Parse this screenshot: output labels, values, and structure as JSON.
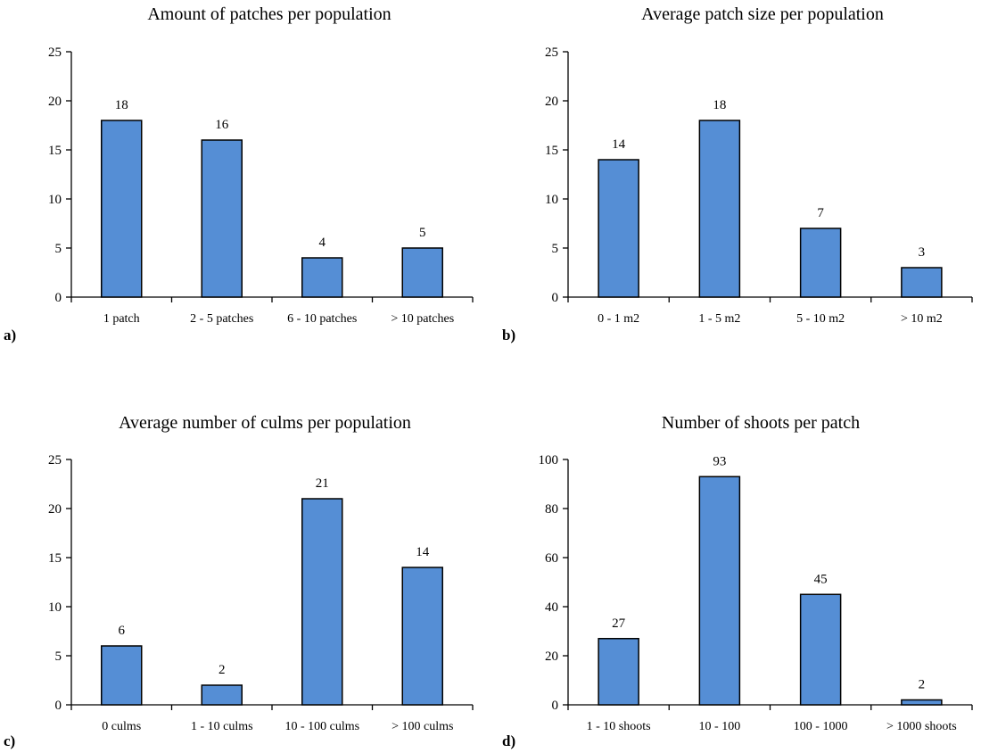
{
  "colors": {
    "bar_fill": "#558ED5",
    "bar_stroke": "#000000",
    "axis": "#000000"
  },
  "chart_data": [
    {
      "type": "bar",
      "panel_label": "a)",
      "title": "Amount of patches per population",
      "categories": [
        "1 patch",
        "2 - 5 patches",
        "6 - 10 patches",
        "> 10 patches"
      ],
      "values": [
        18,
        16,
        4,
        5
      ],
      "data_labels": [
        "18",
        "16",
        "4",
        "5"
      ],
      "xlabel": "",
      "ylabel": "",
      "ylim": [
        0,
        25
      ],
      "yticks": [
        0,
        5,
        10,
        15,
        20,
        25
      ],
      "ytick_labels": [
        "0",
        "5",
        "10",
        "15",
        "20",
        "25"
      ],
      "grid": false,
      "legend": "none"
    },
    {
      "type": "bar",
      "panel_label": "b)",
      "title": "Average patch size per population",
      "categories": [
        "0 - 1 m2",
        "1 - 5 m2",
        "5 - 10 m2",
        "> 10 m2"
      ],
      "values": [
        14,
        18,
        7,
        3
      ],
      "data_labels": [
        "14",
        "18",
        "7",
        "3"
      ],
      "xlabel": "",
      "ylabel": "",
      "ylim": [
        0,
        25
      ],
      "yticks": [
        0,
        5,
        10,
        15,
        20,
        25
      ],
      "ytick_labels": [
        "0",
        "5",
        "10",
        "15",
        "20",
        "25"
      ],
      "grid": false,
      "legend": "none"
    },
    {
      "type": "bar",
      "panel_label": "c)",
      "title": "Average number of culms per population",
      "categories": [
        "0 culms",
        "1 - 10 culms",
        "10 - 100 culms",
        "> 100 culms"
      ],
      "values": [
        6,
        2,
        21,
        14
      ],
      "data_labels": [
        "6",
        "2",
        "21",
        "14"
      ],
      "xlabel": "",
      "ylabel": "",
      "ylim": [
        0,
        25
      ],
      "yticks": [
        0,
        5,
        10,
        15,
        20,
        25
      ],
      "ytick_labels": [
        "0",
        "5",
        "10",
        "15",
        "20",
        "25"
      ],
      "grid": false,
      "legend": "none"
    },
    {
      "type": "bar",
      "panel_label": "d)",
      "title": "Number of shoots per patch",
      "categories": [
        "1 - 10 shoots",
        "10 - 100",
        "100 - 1000",
        "> 1000 shoots"
      ],
      "values": [
        27,
        93,
        45,
        2
      ],
      "data_labels": [
        "27",
        "93",
        "45",
        "2"
      ],
      "xlabel": "",
      "ylabel": "",
      "ylim": [
        0,
        100
      ],
      "yticks": [
        0,
        20,
        40,
        60,
        80,
        100
      ],
      "ytick_labels": [
        "0",
        "20",
        "40",
        "60",
        "80",
        "100"
      ],
      "grid": false,
      "legend": "none"
    }
  ]
}
